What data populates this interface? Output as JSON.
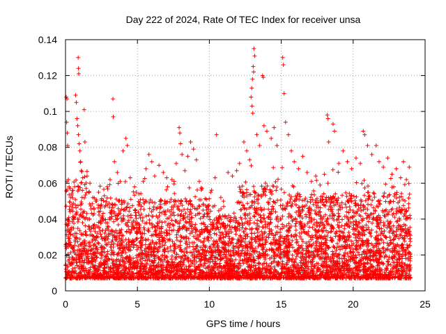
{
  "chart_data": {
    "type": "scatter",
    "title": "Day 222 of 2024, Rate Of TEC Index for receiver unsa",
    "xlabel": "GPS time / hours",
    "ylabel": "ROTI / TECUs",
    "xlim": [
      0,
      25
    ],
    "ylim": [
      0,
      0.14
    ],
    "xticks": [
      0,
      5,
      10,
      15,
      20,
      25
    ],
    "xtick_labels": [
      "0",
      "5",
      "10",
      "15",
      "20",
      "25"
    ],
    "yticks": [
      0,
      0.02,
      0.04,
      0.06,
      0.08,
      0.1,
      0.12,
      0.14
    ],
    "ytick_labels": [
      "0",
      "0.02",
      "0.04",
      "0.06",
      "0.08",
      "0.1",
      "0.12",
      "0.14"
    ],
    "grid": true,
    "marker": "+",
    "color": "#ff0000",
    "series": [
      {
        "name": "ROTI",
        "points": [
          [
            0.05,
            0.108
          ],
          [
            0.1,
            0.107
          ],
          [
            0.08,
            0.094
          ],
          [
            0.12,
            0.088
          ],
          [
            0.15,
            0.081
          ],
          [
            0.2,
            0.062
          ],
          [
            0.25,
            0.058
          ],
          [
            0.3,
            0.047
          ],
          [
            0.35,
            0.052
          ],
          [
            0.45,
            0.048
          ],
          [
            0.7,
            0.109
          ],
          [
            0.75,
            0.105
          ],
          [
            0.8,
            0.096
          ],
          [
            0.85,
            0.092
          ],
          [
            0.9,
            0.087
          ],
          [
            0.95,
            0.082
          ],
          [
            1.0,
            0.078
          ],
          [
            1.05,
            0.072
          ],
          [
            1.1,
            0.067
          ],
          [
            1.2,
            0.063
          ],
          [
            0.88,
            0.13
          ],
          [
            0.9,
            0.124
          ],
          [
            0.92,
            0.121
          ],
          [
            1.3,
            0.101
          ],
          [
            1.35,
            0.083
          ],
          [
            1.5,
            0.064
          ],
          [
            1.7,
            0.06
          ],
          [
            1.9,
            0.052
          ],
          [
            2.1,
            0.05
          ],
          [
            2.3,
            0.055
          ],
          [
            2.5,
            0.048
          ],
          [
            2.7,
            0.053
          ],
          [
            2.9,
            0.058
          ],
          [
            3.1,
            0.062
          ],
          [
            3.3,
            0.107
          ],
          [
            3.32,
            0.097
          ],
          [
            3.4,
            0.072
          ],
          [
            3.6,
            0.066
          ],
          [
            3.8,
            0.061
          ],
          [
            4.0,
            0.078
          ],
          [
            4.2,
            0.085
          ],
          [
            4.3,
            0.081
          ],
          [
            4.5,
            0.063
          ],
          [
            4.8,
            0.058
          ],
          [
            5.1,
            0.054
          ],
          [
            5.4,
            0.061
          ],
          [
            5.6,
            0.068
          ],
          [
            5.8,
            0.076
          ],
          [
            6.0,
            0.072
          ],
          [
            6.2,
            0.064
          ],
          [
            6.5,
            0.07
          ],
          [
            6.8,
            0.066
          ],
          [
            7.1,
            0.058
          ],
          [
            7.4,
            0.062
          ],
          [
            7.7,
            0.071
          ],
          [
            7.9,
            0.091
          ],
          [
            7.95,
            0.088
          ],
          [
            8.0,
            0.082
          ],
          [
            8.1,
            0.076
          ],
          [
            8.3,
            0.067
          ],
          [
            8.5,
            0.075
          ],
          [
            8.7,
            0.083
          ],
          [
            8.9,
            0.079
          ],
          [
            9.1,
            0.073
          ],
          [
            9.3,
            0.061
          ],
          [
            9.5,
            0.057
          ],
          [
            9.8,
            0.051
          ],
          [
            10.1,
            0.055
          ],
          [
            10.4,
            0.063
          ],
          [
            10.5,
            0.087
          ],
          [
            10.8,
            0.052
          ],
          [
            11.0,
            0.047
          ],
          [
            11.3,
            0.066
          ],
          [
            11.6,
            0.064
          ],
          [
            11.9,
            0.067
          ],
          [
            12.1,
            0.071
          ],
          [
            12.4,
            0.083
          ],
          [
            12.6,
            0.078
          ],
          [
            12.8,
            0.073
          ],
          [
            12.9,
            0.108
          ],
          [
            12.95,
            0.113
          ],
          [
            13.0,
            0.118
          ],
          [
            13.05,
            0.125
          ],
          [
            13.1,
            0.135
          ],
          [
            13.15,
            0.131
          ],
          [
            12.97,
            0.103
          ],
          [
            13.02,
            0.099
          ],
          [
            13.08,
            0.122
          ],
          [
            13.3,
            0.087
          ],
          [
            13.5,
            0.081
          ],
          [
            13.7,
            0.12
          ],
          [
            13.75,
            0.119
          ],
          [
            13.8,
            0.092
          ],
          [
            14.0,
            0.089
          ],
          [
            14.3,
            0.085
          ],
          [
            14.5,
            0.091
          ],
          [
            14.7,
            0.081
          ],
          [
            15.1,
            0.13
          ],
          [
            15.15,
            0.126
          ],
          [
            15.2,
            0.11
          ],
          [
            15.3,
            0.094
          ],
          [
            15.5,
            0.087
          ],
          [
            15.7,
            0.078
          ],
          [
            15.9,
            0.072
          ],
          [
            16.2,
            0.068
          ],
          [
            16.5,
            0.075
          ],
          [
            16.8,
            0.066
          ],
          [
            17.1,
            0.061
          ],
          [
            17.4,
            0.064
          ],
          [
            17.7,
            0.059
          ],
          [
            18.0,
            0.065
          ],
          [
            18.2,
            0.098
          ],
          [
            18.25,
            0.096
          ],
          [
            18.3,
            0.083
          ],
          [
            18.6,
            0.093
          ],
          [
            18.7,
            0.089
          ],
          [
            19.0,
            0.071
          ],
          [
            19.3,
            0.078
          ],
          [
            19.6,
            0.072
          ],
          [
            19.9,
            0.068
          ],
          [
            20.2,
            0.074
          ],
          [
            20.5,
            0.071
          ],
          [
            20.7,
            0.089
          ],
          [
            20.8,
            0.087
          ],
          [
            21.0,
            0.081
          ],
          [
            21.3,
            0.076
          ],
          [
            21.6,
            0.081
          ],
          [
            21.8,
            0.072
          ],
          [
            22.1,
            0.069
          ],
          [
            22.4,
            0.074
          ],
          [
            22.7,
            0.065
          ],
          [
            23.0,
            0.068
          ],
          [
            23.3,
            0.063
          ],
          [
            23.5,
            0.072
          ],
          [
            23.7,
            0.062
          ],
          [
            23.9,
            0.069
          ]
        ]
      }
    ]
  }
}
